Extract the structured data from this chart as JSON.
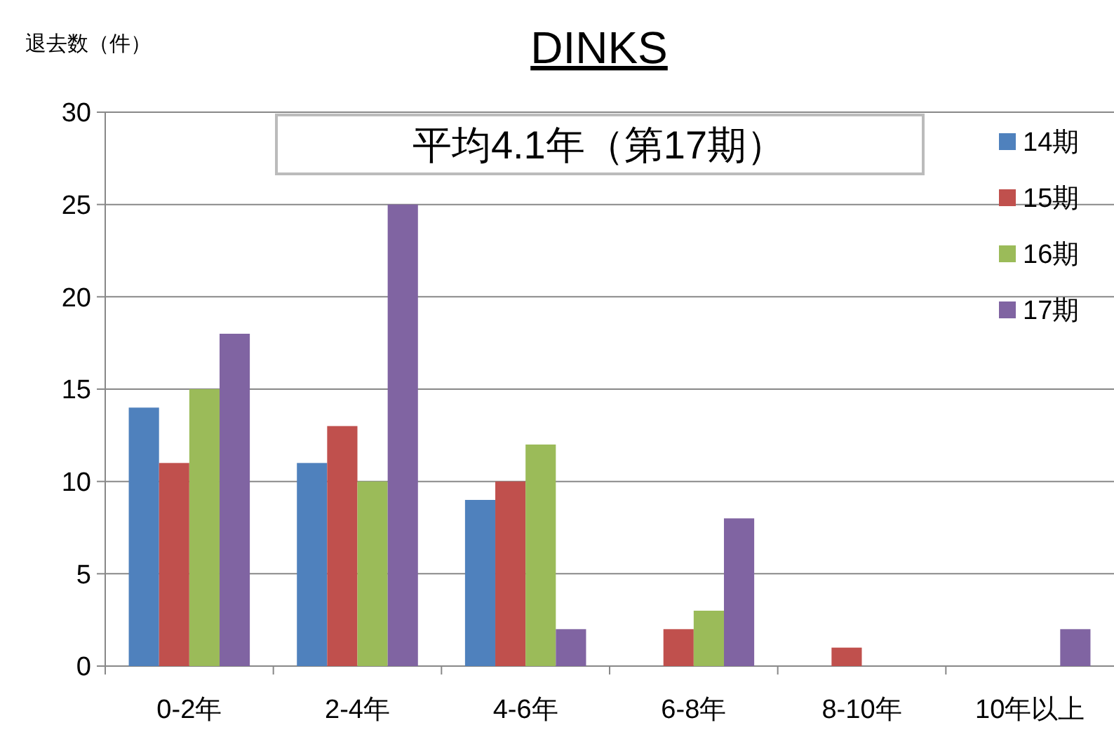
{
  "chart_data": {
    "type": "bar",
    "title": "DINKS",
    "ylabel": "退去数（件）",
    "annotations": [
      "平均4.1年（第17期）"
    ],
    "categories": [
      "0-2年",
      "2-4年",
      "4-6年",
      "6-8年",
      "8-10年",
      "10年以上"
    ],
    "series": [
      {
        "name": "14期",
        "color": "#4f81bd",
        "values": [
          14,
          11,
          9,
          0,
          0,
          0
        ]
      },
      {
        "name": "15期",
        "color": "#c0504d",
        "values": [
          11,
          13,
          10,
          2,
          1,
          0
        ]
      },
      {
        "name": "16期",
        "color": "#9bbb59",
        "values": [
          15,
          10,
          12,
          3,
          0,
          0
        ]
      },
      {
        "name": "17期",
        "color": "#8064a2",
        "values": [
          18,
          25,
          2,
          8,
          0,
          2
        ]
      }
    ],
    "ylim": [
      0,
      30
    ],
    "yticks": [
      0,
      5,
      10,
      15,
      20,
      25,
      30
    ],
    "grid": "y",
    "legend": "top right"
  }
}
